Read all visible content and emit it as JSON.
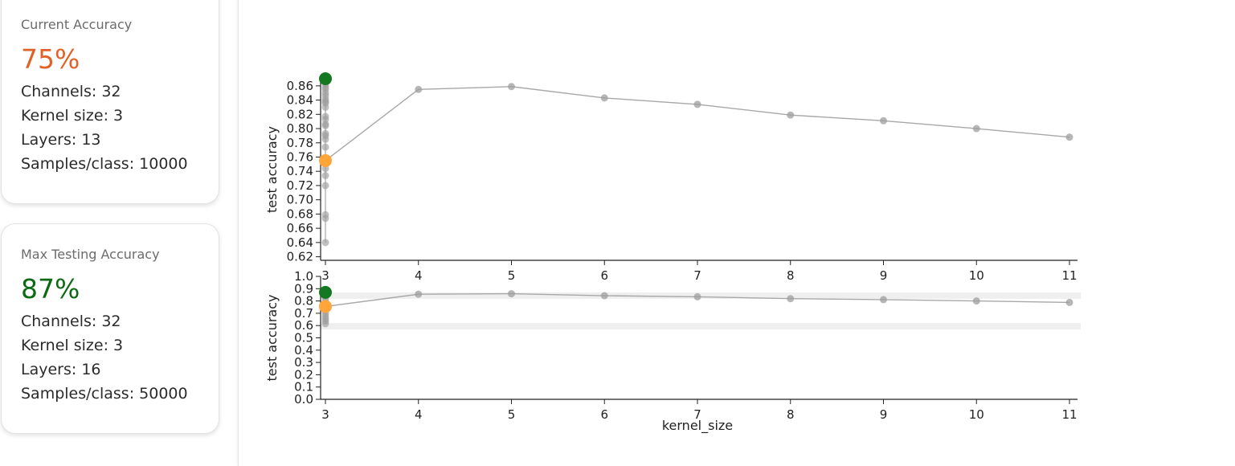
{
  "current": {
    "title": "Current Accuracy",
    "value": "75%",
    "channels": "Channels: 32",
    "kernel": "Kernel size: 3",
    "layers": "Layers: 13",
    "samples": "Samples/class: 10000"
  },
  "max": {
    "title": "Max Testing Accuracy",
    "value": "87%",
    "channels": "Channels: 32",
    "kernel": "Kernel size: 3",
    "layers": "Layers: 16",
    "samples": "Samples/class: 50000"
  },
  "colors": {
    "current_point": "#ffa53a",
    "max_point": "#13781f",
    "line": "#a8a8a8",
    "points": "#9e9e9e",
    "band": "#efefef"
  },
  "chart_data": [
    {
      "type": "line",
      "xlabel": "",
      "ylabel": "test accuracy",
      "xticks": [
        3,
        4,
        5,
        6,
        7,
        8,
        9,
        10,
        11
      ],
      "yticks": [
        "0.62",
        "0.64",
        "0.66",
        "0.68",
        "0.70",
        "0.72",
        "0.74",
        "0.76",
        "0.78",
        "0.80",
        "0.82",
        "0.84",
        "0.86"
      ],
      "xlim": [
        3,
        11
      ],
      "ylim": [
        0.61,
        0.87
      ],
      "series": [
        {
          "x": [
            3,
            4,
            5,
            6,
            7,
            8,
            9,
            10,
            11
          ],
          "values": [
            0.755,
            0.855,
            0.859,
            0.843,
            0.834,
            0.819,
            0.811,
            0.8,
            0.788
          ]
        }
      ],
      "scatter_x3": [
        0.64,
        0.674,
        0.679,
        0.72,
        0.734,
        0.744,
        0.774,
        0.785,
        0.79,
        0.793,
        0.804,
        0.806,
        0.813,
        0.817,
        0.83,
        0.836,
        0.838,
        0.841,
        0.846,
        0.85,
        0.855,
        0.858,
        0.862,
        0.866
      ],
      "highlight": {
        "max": {
          "x": 3,
          "y": 0.87
        },
        "current": {
          "x": 3,
          "y": 0.755
        }
      }
    },
    {
      "type": "line",
      "xlabel": "kernel_size",
      "ylabel": "test accuracy",
      "xticks": [
        3,
        4,
        5,
        6,
        7,
        8,
        9,
        10,
        11
      ],
      "yticks": [
        "0.0",
        "0.1",
        "0.2",
        "0.3",
        "0.4",
        "0.5",
        "0.6",
        "0.7",
        "0.8",
        "0.9",
        "1.0"
      ],
      "xlim": [
        3,
        11
      ],
      "ylim": [
        0,
        1.0
      ],
      "band_ranges": [
        [
          0.62,
          0.61
        ],
        [
          0.87,
          0.86
        ]
      ],
      "series": [
        {
          "x": [
            3,
            4,
            5,
            6,
            7,
            8,
            9,
            10,
            11
          ],
          "values": [
            0.755,
            0.855,
            0.859,
            0.843,
            0.834,
            0.819,
            0.811,
            0.8,
            0.788
          ]
        }
      ],
      "scatter_x3": [
        0.615,
        0.635,
        0.655,
        0.675,
        0.7,
        0.72,
        0.745,
        0.77,
        0.8,
        0.825,
        0.85
      ],
      "highlight": {
        "max": {
          "x": 3,
          "y": 0.87
        },
        "current": {
          "x": 3,
          "y": 0.755
        }
      }
    }
  ]
}
